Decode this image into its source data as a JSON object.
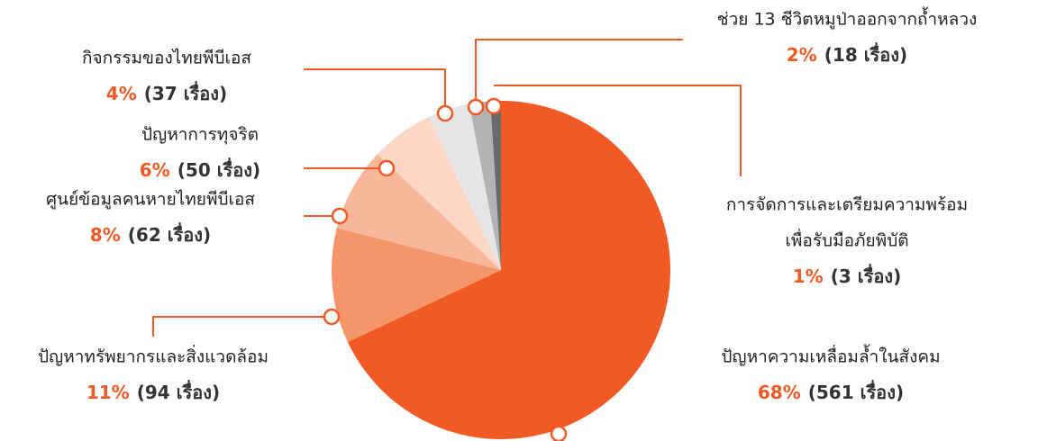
{
  "chart_data": {
    "type": "pie",
    "categories": [
      "ปัญหาความเหลื่อมล้ำในสังคม",
      "ปัญหาทรัพยากรและสิ่งแวดล้อม",
      "ศูนย์ข้อมูลคนหายไทยพีบีเอส",
      "ปัญหาการทุจริต",
      "กิจกรรมของไทยพีบีเอส",
      "ช่วย 13 ชีวิตหมูป่าออกจากถ้ำหลวง",
      [
        "การจัดการและเตรียมความพร้อม",
        "เพื่อรับมือภัยพิบัติ"
      ]
    ],
    "values": [
      68,
      11,
      8,
      6,
      4,
      2,
      1
    ],
    "value_labels": [
      "68%",
      "11%",
      "8%",
      "6%",
      "4%",
      "2%",
      "1%"
    ],
    "count_labels": [
      "(561 เรื่อง)",
      "(94 เรื่อง)",
      "(62 เรื่อง)",
      "(50 เรื่อง)",
      "(37 เรื่อง)",
      "(18 เรื่อง)",
      "(3 เรื่อง)"
    ],
    "colors": [
      "#f15a24",
      "#f4966a",
      "#f8b799",
      "#fcd7c5",
      "#e6e6e6",
      "#b3b3b3",
      "#6b6b6b"
    ],
    "label_color": "#f15a24"
  }
}
